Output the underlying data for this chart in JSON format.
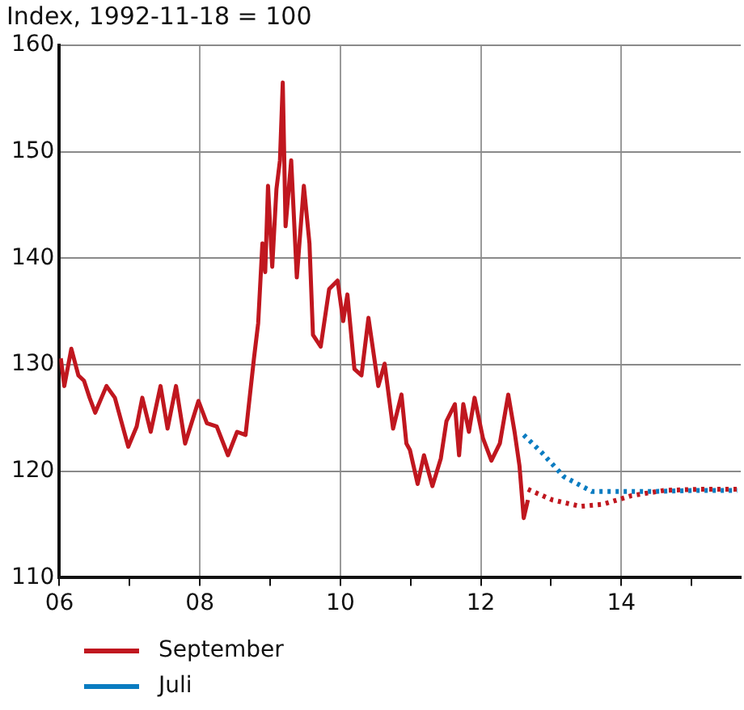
{
  "chart_data": {
    "type": "line",
    "title": "Index, 1992-11-18 = 100",
    "xlim": [
      2006,
      2015.7
    ],
    "series": [
      {
        "name": "September",
        "color": "#c0171f",
        "line_style": "solid",
        "x": [
          2006.02,
          2006.07,
          2006.17,
          2006.27,
          2006.35,
          2006.43,
          2006.51,
          2006.67,
          2006.79,
          2006.98,
          2007.1,
          2007.18,
          2007.3,
          2007.44,
          2007.54,
          2007.66,
          2007.79,
          2007.98,
          2008.1,
          2008.24,
          2008.4,
          2008.53,
          2008.65,
          2008.77,
          2008.83,
          2008.89,
          2008.93,
          2008.97,
          2009.03,
          2009.09,
          2009.14,
          2009.18,
          2009.22,
          2009.3,
          2009.38,
          2009.48,
          2009.56,
          2009.61,
          2009.72,
          2009.84,
          2009.96,
          2010.04,
          2010.1,
          2010.2,
          2010.3,
          2010.4,
          2010.54,
          2010.63,
          2010.75,
          2010.87,
          2010.94,
          2010.99,
          2011.1,
          2011.19,
          2011.31,
          2011.43,
          2011.51,
          2011.63,
          2011.69,
          2011.75,
          2011.83,
          2011.91,
          2012.03,
          2012.15,
          2012.27,
          2012.39,
          2012.48,
          2012.55,
          2012.61,
          2012.67
        ],
        "values": [
          130.6,
          128,
          131.5,
          129,
          128.5,
          126.9,
          125.5,
          128,
          126.9,
          122.3,
          124.2,
          126.9,
          123.7,
          128,
          124,
          128,
          122.6,
          126.6,
          124.5,
          124.2,
          121.5,
          123.7,
          123.4,
          130.6,
          133.9,
          141.4,
          138.7,
          146.8,
          139.2,
          146.5,
          149.2,
          156.5,
          143,
          149.2,
          138.2,
          146.8,
          141.4,
          132.8,
          131.7,
          137.1,
          137.9,
          134.1,
          136.6,
          129.6,
          129,
          134.4,
          128,
          130.1,
          124,
          127.2,
          122.6,
          122,
          118.8,
          121.5,
          118.6,
          121.2,
          124.7,
          126.3,
          121.5,
          126.3,
          123.7,
          126.9,
          123.1,
          121,
          122.6,
          127.2,
          123.7,
          120.5,
          115.6,
          117.3
        ]
      },
      {
        "color": "#c0171f",
        "line_style": "dotted",
        "x": [
          2012.67,
          2013.02,
          2013.42,
          2013.74,
          2014.14,
          2014.61,
          2015.09,
          2015.65
        ],
        "values": [
          118.3,
          117.3,
          116.7,
          116.9,
          117.7,
          118.2,
          118.3,
          118.3
        ]
      },
      {
        "name": "Juli",
        "color": "#0a7cc1",
        "line_style": "dotted",
        "x": [
          2012.61,
          2012.86,
          2013.18,
          2013.58,
          2013.98,
          2014.46,
          2015.09,
          2015.65
        ],
        "values": [
          123.4,
          121.8,
          119.5,
          118.1,
          118.1,
          118.1,
          118.2,
          118.2
        ]
      }
    ],
    "xticks": [
      {
        "value": 2006,
        "label": "06"
      },
      {
        "value": 2007,
        "label": null
      },
      {
        "value": 2008,
        "label": "08"
      },
      {
        "value": 2009,
        "label": null
      },
      {
        "value": 2010,
        "label": "10"
      },
      {
        "value": 2011,
        "label": null
      },
      {
        "value": 2012,
        "label": "12"
      },
      {
        "value": 2013,
        "label": null
      },
      {
        "value": 2014,
        "label": "14"
      },
      {
        "value": 2015,
        "label": null
      }
    ],
    "ylim": [
      110,
      160
    ],
    "yticks": [
      110,
      120,
      130,
      140,
      150,
      160
    ],
    "grid": true,
    "legend": "bottom",
    "marker": "none"
  }
}
